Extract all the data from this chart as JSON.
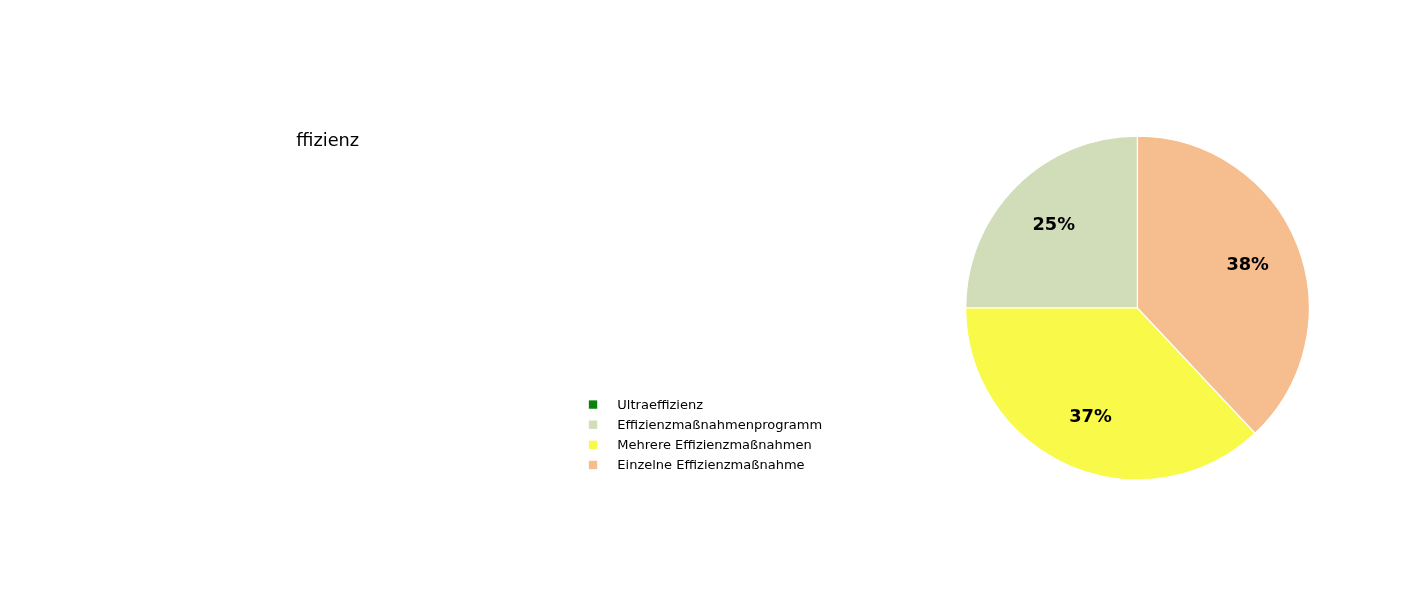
{
  "chart_data": {
    "type": "pie",
    "title": "ffizienz",
    "categories": [
      "Ultraeffizienz",
      "Effizienzmaßnahmenprogramm",
      "Mehrere Effizienzmaßnahmen",
      "Einzelne Effizienzmaßnahme"
    ],
    "values": [
      0,
      25,
      37,
      38
    ],
    "colors": [
      "#0b800b",
      "#d1ddb9",
      "#f9f94a",
      "#f6bd8f"
    ],
    "value_labels": [
      null,
      "25%",
      "37%",
      "38%"
    ],
    "legend": "bottom left"
  }
}
